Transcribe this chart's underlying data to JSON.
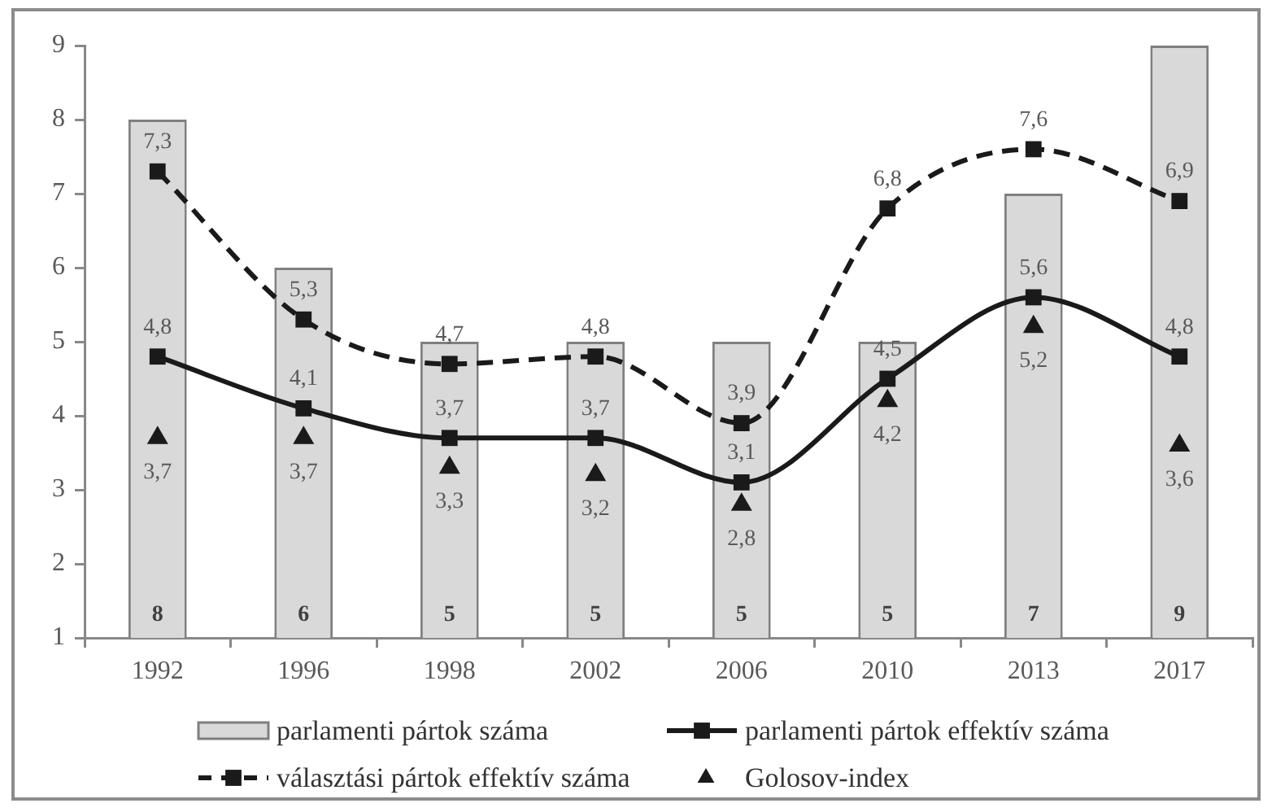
{
  "chart_data": {
    "type": "bar",
    "categories": [
      "1992",
      "1996",
      "1998",
      "2002",
      "2006",
      "2010",
      "2013",
      "2017"
    ],
    "series": [
      {
        "name": "parlamenti pártok száma",
        "color": "#d9d9d9",
        "values": [
          8,
          6,
          5,
          5,
          5,
          5,
          7,
          9
        ],
        "value_labels": [
          "8",
          "6",
          "5",
          "5",
          "5",
          "5",
          "7",
          "9"
        ]
      },
      {
        "name": "parlamenti pártok effektív száma",
        "type": "line",
        "color": "#1a1a1a",
        "marker": "square",
        "line_style": "solid",
        "values": [
          4.8,
          4.1,
          3.7,
          3.7,
          3.1,
          4.5,
          5.6,
          4.8
        ],
        "value_labels": [
          "4,8",
          "4,1",
          "3,7",
          "3,7",
          "3,1",
          "4,5",
          "5,6",
          "4,8"
        ]
      },
      {
        "name": "választási pártok effektív száma",
        "type": "line",
        "color": "#1a1a1a",
        "marker": "square",
        "line_style": "dashed",
        "values": [
          7.3,
          5.3,
          4.7,
          4.8,
          3.9,
          6.8,
          7.6,
          6.9
        ],
        "value_labels": [
          "7,3",
          "5,3",
          "4,7",
          "4,8",
          "3,9",
          "6,8",
          "7,6",
          "6,9"
        ]
      },
      {
        "name": "Golosov-index",
        "type": "scatter",
        "color": "#1a1a1a",
        "marker": "triangle",
        "values": [
          3.7,
          3.7,
          3.3,
          3.2,
          2.8,
          4.2,
          5.2,
          3.6
        ],
        "value_labels": [
          "3,7",
          "3,7",
          "3,3",
          "3,2",
          "2,8",
          "4,2",
          "5,2",
          "3,6"
        ]
      }
    ],
    "ylim": [
      1,
      9
    ],
    "yticks": [
      1,
      2,
      3,
      4,
      5,
      6,
      7,
      8,
      9
    ],
    "grid": false,
    "legend": "bottom"
  }
}
